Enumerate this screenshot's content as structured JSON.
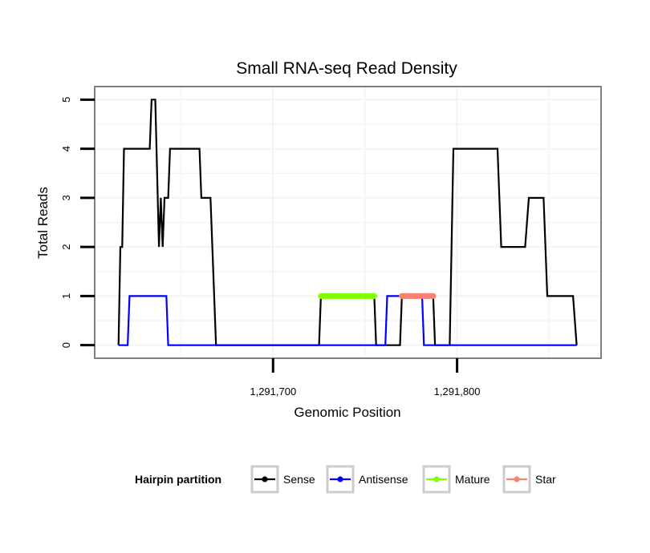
{
  "chart_data": {
    "type": "line",
    "title": "Small RNA-seq Read Density",
    "xlabel": "Genomic Position",
    "ylabel": "Total Reads",
    "xlim": [
      1291603.5,
      1291877.8
    ],
    "ylim": [
      -0.25,
      5.25
    ],
    "x_ticks": [
      {
        "value": 1291700,
        "label": "1,291,700"
      },
      {
        "value": 1291800,
        "label": "1,291,800"
      }
    ],
    "y_ticks": [
      {
        "value": 0,
        "label": "0"
      },
      {
        "value": 1,
        "label": "1"
      },
      {
        "value": 2,
        "label": "2"
      },
      {
        "value": 3,
        "label": "3"
      },
      {
        "value": 4,
        "label": "4"
      },
      {
        "value": 5,
        "label": "5"
      }
    ],
    "x_minor_grid": [
      1291650,
      1291750,
      1291850
    ],
    "grid": true,
    "legend": {
      "title": "Hairpin partition",
      "placement": "bottom",
      "entries": [
        {
          "name": "Sense",
          "color": "#000000"
        },
        {
          "name": "Antisense",
          "color": "#0000ff"
        },
        {
          "name": "Mature",
          "color": "#7fff00"
        },
        {
          "name": "Star",
          "color": "#fa8072"
        }
      ]
    },
    "series": [
      {
        "name": "Sense",
        "color": "#000000",
        "style": "line",
        "points": [
          [
            1291616,
            0
          ],
          [
            1291617,
            2
          ],
          [
            1291618,
            2
          ],
          [
            1291619,
            4
          ],
          [
            1291633,
            4
          ],
          [
            1291634,
            5
          ],
          [
            1291636,
            5
          ],
          [
            1291638,
            2
          ],
          [
            1291639,
            3
          ],
          [
            1291640,
            2
          ],
          [
            1291641,
            3
          ],
          [
            1291643,
            3
          ],
          [
            1291644,
            4
          ],
          [
            1291660,
            4
          ],
          [
            1291661,
            3
          ],
          [
            1291666,
            3
          ],
          [
            1291667,
            2
          ],
          [
            1291669,
            0
          ],
          [
            1291725,
            0
          ],
          [
            1291726,
            1
          ],
          [
            1291755,
            1
          ],
          [
            1291756,
            0
          ],
          [
            1291769,
            0
          ],
          [
            1291770,
            1
          ],
          [
            1291787,
            1
          ],
          [
            1291788,
            0
          ],
          [
            1291796,
            0
          ],
          [
            1291798,
            4
          ],
          [
            1291822,
            4
          ],
          [
            1291824,
            2
          ],
          [
            1291837,
            2
          ],
          [
            1291839,
            3
          ],
          [
            1291847,
            3
          ],
          [
            1291849,
            1
          ],
          [
            1291863,
            1
          ],
          [
            1291865,
            0
          ]
        ]
      },
      {
        "name": "Antisense",
        "color": "#0000ff",
        "style": "line",
        "points": [
          [
            1291616,
            0
          ],
          [
            1291621,
            0
          ],
          [
            1291622,
            1
          ],
          [
            1291642,
            1
          ],
          [
            1291643,
            0
          ],
          [
            1291761,
            0
          ],
          [
            1291762,
            1
          ],
          [
            1291781,
            1
          ],
          [
            1291782,
            0
          ],
          [
            1291865,
            0
          ]
        ]
      },
      {
        "name": "Mature",
        "color": "#7fff00",
        "style": "points",
        "x_range": [
          1291726,
          1291755
        ],
        "y": 1
      },
      {
        "name": "Star",
        "color": "#fa8072",
        "style": "points",
        "x_range": [
          1291770,
          1291787
        ],
        "y": 1
      }
    ]
  }
}
